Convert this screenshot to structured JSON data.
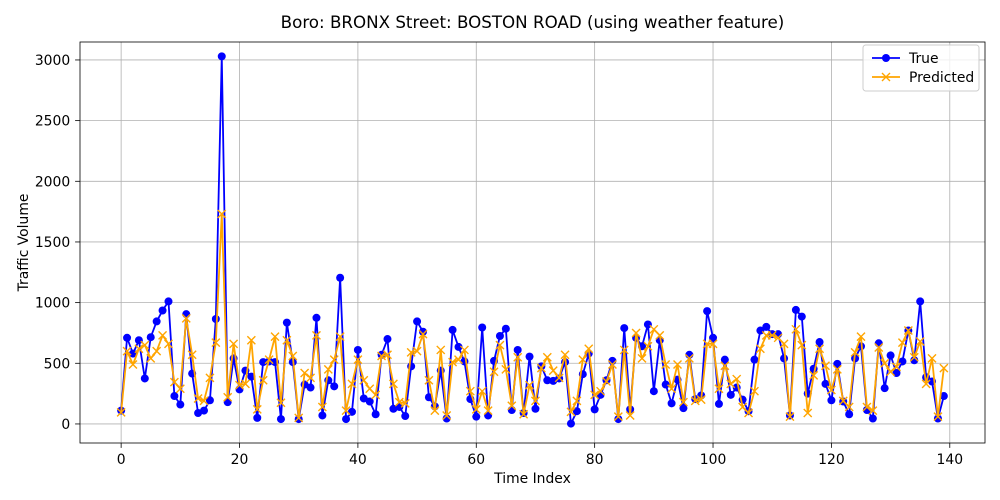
{
  "chart_data": {
    "type": "line",
    "title": "Boro: BRONX Street: BOSTON ROAD (using weather feature)",
    "xlabel": "Time Index",
    "ylabel": "Traffic Volume",
    "xlim": [
      -6.95,
      145.95
    ],
    "ylim": [
      -157,
      3148
    ],
    "xticks": [
      0,
      20,
      40,
      60,
      80,
      100,
      120,
      140
    ],
    "yticks": [
      0,
      500,
      1000,
      1500,
      2000,
      2500,
      3000
    ],
    "grid": true,
    "legend": "upper right",
    "x": [
      0,
      1,
      2,
      3,
      4,
      5,
      6,
      7,
      8,
      9,
      10,
      11,
      12,
      13,
      14,
      15,
      16,
      17,
      18,
      19,
      20,
      21,
      22,
      23,
      24,
      25,
      26,
      27,
      28,
      29,
      30,
      31,
      32,
      33,
      34,
      35,
      36,
      37,
      38,
      39,
      40,
      41,
      42,
      43,
      44,
      45,
      46,
      47,
      48,
      49,
      50,
      51,
      52,
      53,
      54,
      55,
      56,
      57,
      58,
      59,
      60,
      61,
      62,
      63,
      64,
      65,
      66,
      67,
      68,
      69,
      70,
      71,
      72,
      73,
      74,
      75,
      76,
      77,
      78,
      79,
      80,
      81,
      82,
      83,
      84,
      85,
      86,
      87,
      88,
      89,
      90,
      91,
      92,
      93,
      94,
      95,
      96,
      97,
      98,
      99,
      100,
      101,
      102,
      103,
      104,
      105,
      106,
      107,
      108,
      109,
      110,
      111,
      112,
      113,
      114,
      115,
      116,
      117,
      118,
      119,
      120,
      121,
      122,
      123,
      124,
      125,
      126,
      127,
      128,
      129,
      130,
      131,
      132,
      133,
      134,
      135,
      136,
      137,
      138,
      139
    ],
    "series": [
      {
        "name": "True",
        "color": "#0000ff",
        "marker": "circle",
        "values": [
          110,
          710,
          580,
          690,
          375,
          715,
          845,
          935,
          1010,
          230,
          160,
          905,
          415,
          90,
          110,
          195,
          865,
          3030,
          180,
          540,
          285,
          440,
          390,
          50,
          510,
          515,
          510,
          40,
          835,
          510,
          40,
          325,
          300,
          875,
          70,
          360,
          310,
          1205,
          40,
          100,
          610,
          210,
          185,
          80,
          570,
          700,
          125,
          140,
          65,
          475,
          845,
          760,
          220,
          145,
          440,
          45,
          775,
          635,
          515,
          205,
          60,
          795,
          70,
          520,
          725,
          785,
          115,
          610,
          90,
          555,
          125,
          475,
          360,
          355,
          375,
          510,
          3,
          105,
          410,
          580,
          120,
          240,
          360,
          520,
          40,
          790,
          120,
          710,
          640,
          820,
          270,
          690,
          325,
          170,
          365,
          130,
          570,
          205,
          235,
          930,
          710,
          165,
          530,
          240,
          300,
          200,
          105,
          530,
          770,
          800,
          740,
          740,
          540,
          70,
          940,
          885,
          250,
          455,
          675,
          330,
          195,
          495,
          185,
          80,
          540,
          640,
          115,
          45,
          665,
          295,
          565,
          420,
          515,
          770,
          525,
          1010,
          385,
          350,
          45,
          230
        ]
      },
      {
        "name": "Predicted",
        "color": "#ffa500",
        "marker": "x",
        "values": [
          95,
          600,
          490,
          620,
          650,
          540,
          600,
          730,
          660,
          345,
          290,
          870,
          570,
          210,
          190,
          380,
          670,
          1730,
          220,
          660,
          320,
          330,
          690,
          120,
          360,
          530,
          720,
          175,
          690,
          560,
          50,
          420,
          380,
          730,
          140,
          450,
          530,
          720,
          110,
          330,
          530,
          360,
          290,
          240,
          560,
          570,
          330,
          180,
          170,
          590,
          600,
          740,
          360,
          110,
          610,
          70,
          510,
          530,
          610,
          270,
          120,
          270,
          110,
          430,
          650,
          450,
          150,
          550,
          80,
          320,
          190,
          460,
          550,
          440,
          380,
          570,
          100,
          190,
          530,
          620,
          240,
          270,
          350,
          490,
          60,
          610,
          70,
          750,
          540,
          640,
          780,
          730,
          490,
          290,
          490,
          180,
          540,
          190,
          200,
          660,
          660,
          290,
          480,
          330,
          370,
          140,
          90,
          270,
          620,
          730,
          730,
          710,
          660,
          60,
          780,
          650,
          90,
          400,
          620,
          480,
          280,
          450,
          190,
          140,
          590,
          720,
          140,
          110,
          630,
          500,
          430,
          470,
          670,
          770,
          550,
          680,
          330,
          540,
          60,
          460
        ]
      }
    ]
  }
}
